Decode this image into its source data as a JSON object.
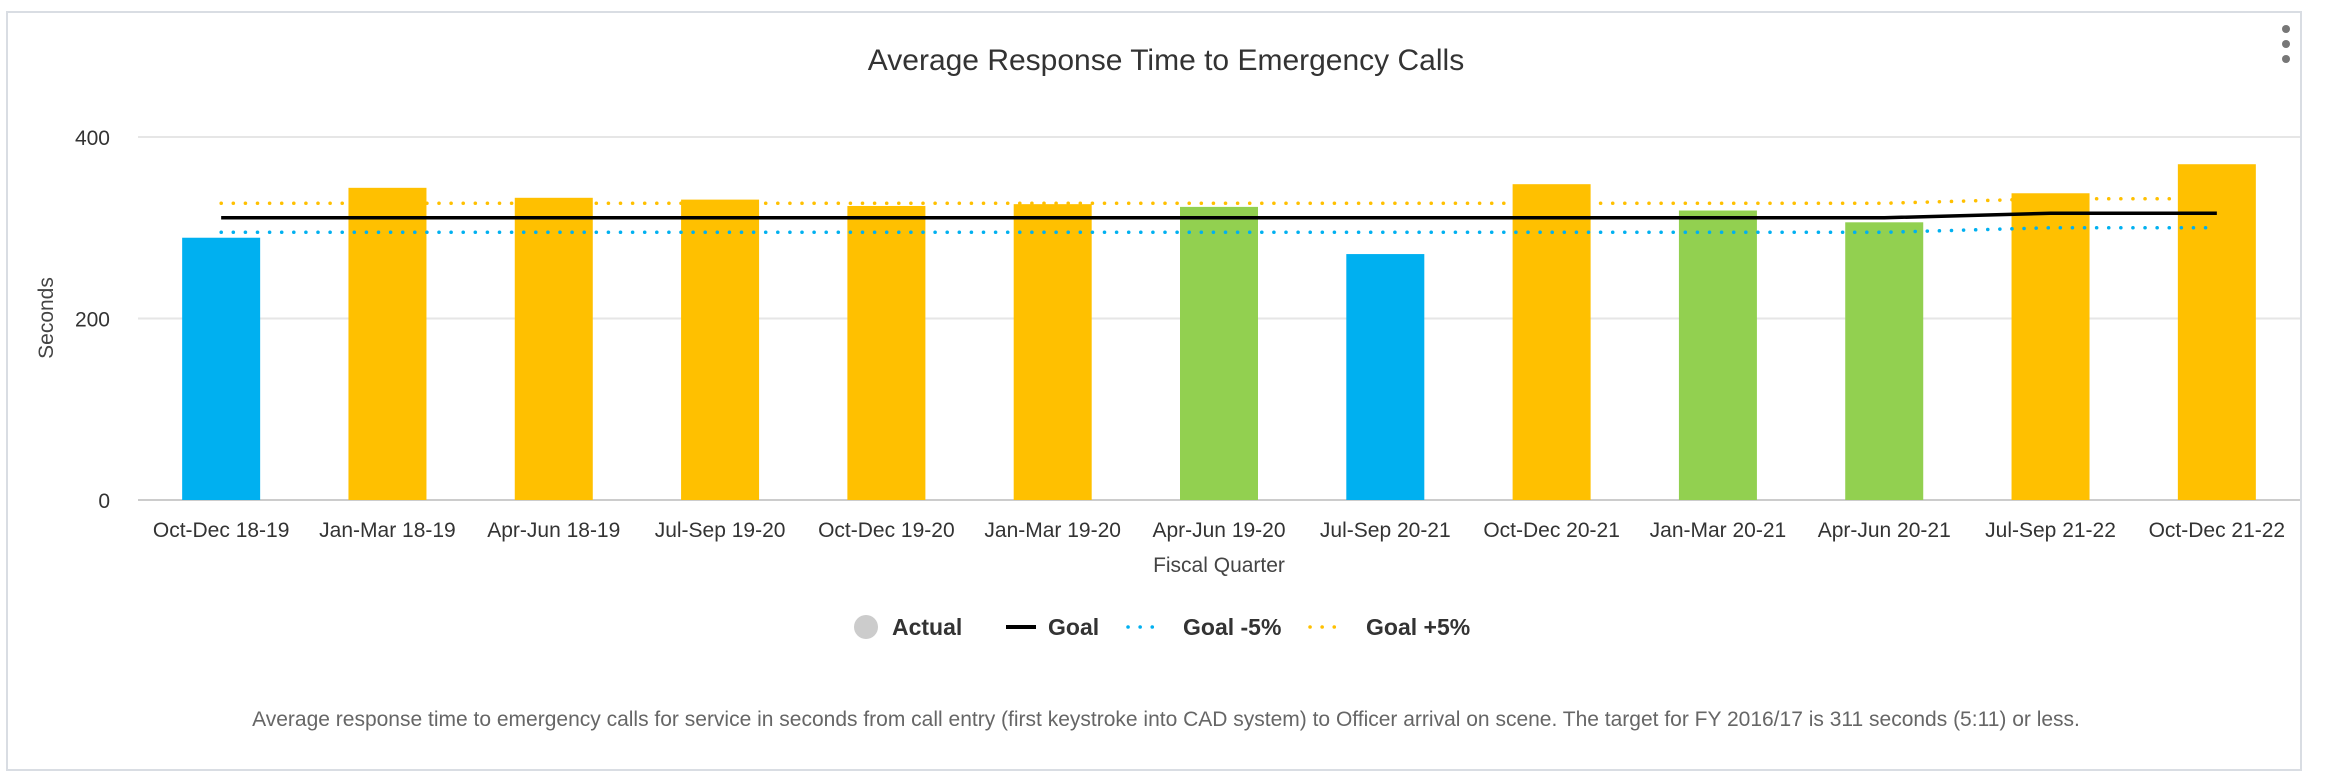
{
  "chart_data": {
    "type": "bar",
    "title": "Average Response Time to Emergency Calls",
    "xlabel": "Fiscal Quarter",
    "ylabel": "Seconds",
    "ylim": [
      0,
      400
    ],
    "yticks": [
      "0",
      "200",
      "400"
    ],
    "ytick_values": [
      0,
      200,
      400
    ],
    "grid": true,
    "categories": [
      "Oct-Dec 18-19",
      "Jan-Mar 18-19",
      "Apr-Jun 18-19",
      "Jul-Sep 19-20",
      "Oct-Dec 19-20",
      "Jan-Mar 19-20",
      "Apr-Jun 19-20",
      "Jul-Sep 20-21",
      "Oct-Dec 20-21",
      "Jan-Mar 20-21",
      "Apr-Jun 20-21",
      "Jul-Sep 21-22",
      "Oct-Dec 21-22"
    ],
    "series": [
      {
        "name": "Actual",
        "kind": "bar",
        "values": [
          289,
          344,
          333,
          331,
          324,
          326,
          323,
          271,
          348,
          319,
          306,
          338,
          370
        ],
        "bar_colors": [
          "#00b0f0",
          "#ffc000",
          "#ffc000",
          "#ffc000",
          "#ffc000",
          "#ffc000",
          "#92d050",
          "#00b0f0",
          "#ffc000",
          "#92d050",
          "#92d050",
          "#ffc000",
          "#ffc000"
        ],
        "legend_color": "#cccccc"
      },
      {
        "name": "Goal",
        "kind": "line",
        "style": "solid",
        "color": "#000000",
        "values": [
          311,
          311,
          311,
          311,
          311,
          311,
          311,
          311,
          311,
          311,
          311,
          316,
          316
        ]
      },
      {
        "name": "Goal -5%",
        "kind": "line",
        "style": "dotted",
        "color": "#00b0f0",
        "values": [
          295,
          295,
          295,
          295,
          295,
          295,
          295,
          295,
          295,
          295,
          295,
          300,
          300
        ]
      },
      {
        "name": "Goal +5%",
        "kind": "line",
        "style": "dotted",
        "color": "#ffc000",
        "values": [
          327,
          327,
          327,
          327,
          327,
          327,
          327,
          327,
          327,
          327,
          327,
          332,
          332
        ]
      }
    ],
    "legend": {
      "position": "bottom-center",
      "items": [
        "Actual",
        "Goal",
        "Goal -5%",
        "Goal +5%"
      ]
    }
  },
  "caption": "Average response time to emergency calls for service in seconds from call entry (first keystroke into CAD system) to Officer arrival on scene. The target for FY 2016/17 is 311 seconds (5:11) or less.",
  "colors": {
    "grid": "#e6e6e6",
    "axis": "#cccccc",
    "text": "#333333"
  }
}
